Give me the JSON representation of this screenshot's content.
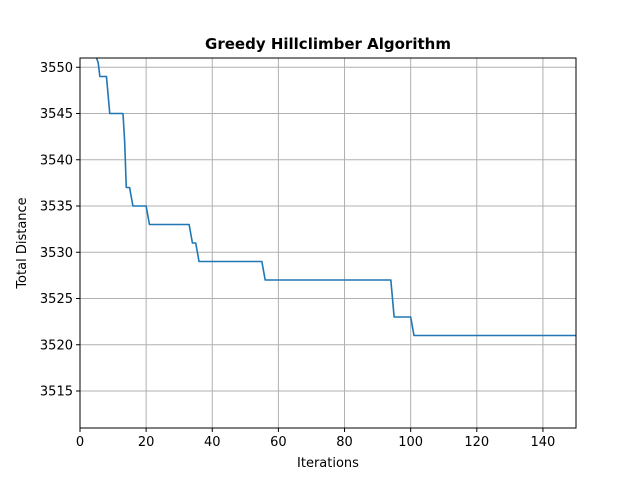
{
  "chart_data": {
    "type": "line",
    "title": "Greedy Hillclimber Algorithm",
    "xlabel": "Iterations",
    "ylabel": "Total Distance",
    "xlim": [
      0,
      150
    ],
    "ylim": [
      3511,
      3551
    ],
    "xticks": [
      0,
      20,
      40,
      60,
      80,
      100,
      120,
      140
    ],
    "yticks": [
      3515,
      3520,
      3525,
      3530,
      3535,
      3540,
      3545,
      3550
    ],
    "grid": true,
    "legend": "none",
    "series": [
      {
        "color": "#1f77b4",
        "x": [
          5,
          5.5,
          6,
          8,
          8.5,
          9,
          13,
          13.5,
          14,
          14.5,
          15,
          15.5,
          16,
          20,
          20.5,
          21,
          33,
          33.5,
          34,
          35,
          35.5,
          36,
          55,
          55.5,
          56,
          94,
          94.5,
          95,
          100,
          100.5,
          101,
          150
        ],
        "y": [
          3551,
          3550.5,
          3549,
          3549,
          3547,
          3545,
          3545,
          3542,
          3537,
          3537,
          3537,
          3536,
          3535,
          3535,
          3534,
          3533,
          3533,
          3532,
          3531,
          3531,
          3530,
          3529,
          3529,
          3528,
          3527,
          3527,
          3525,
          3523,
          3523,
          3522,
          3521,
          3521
        ]
      }
    ]
  }
}
